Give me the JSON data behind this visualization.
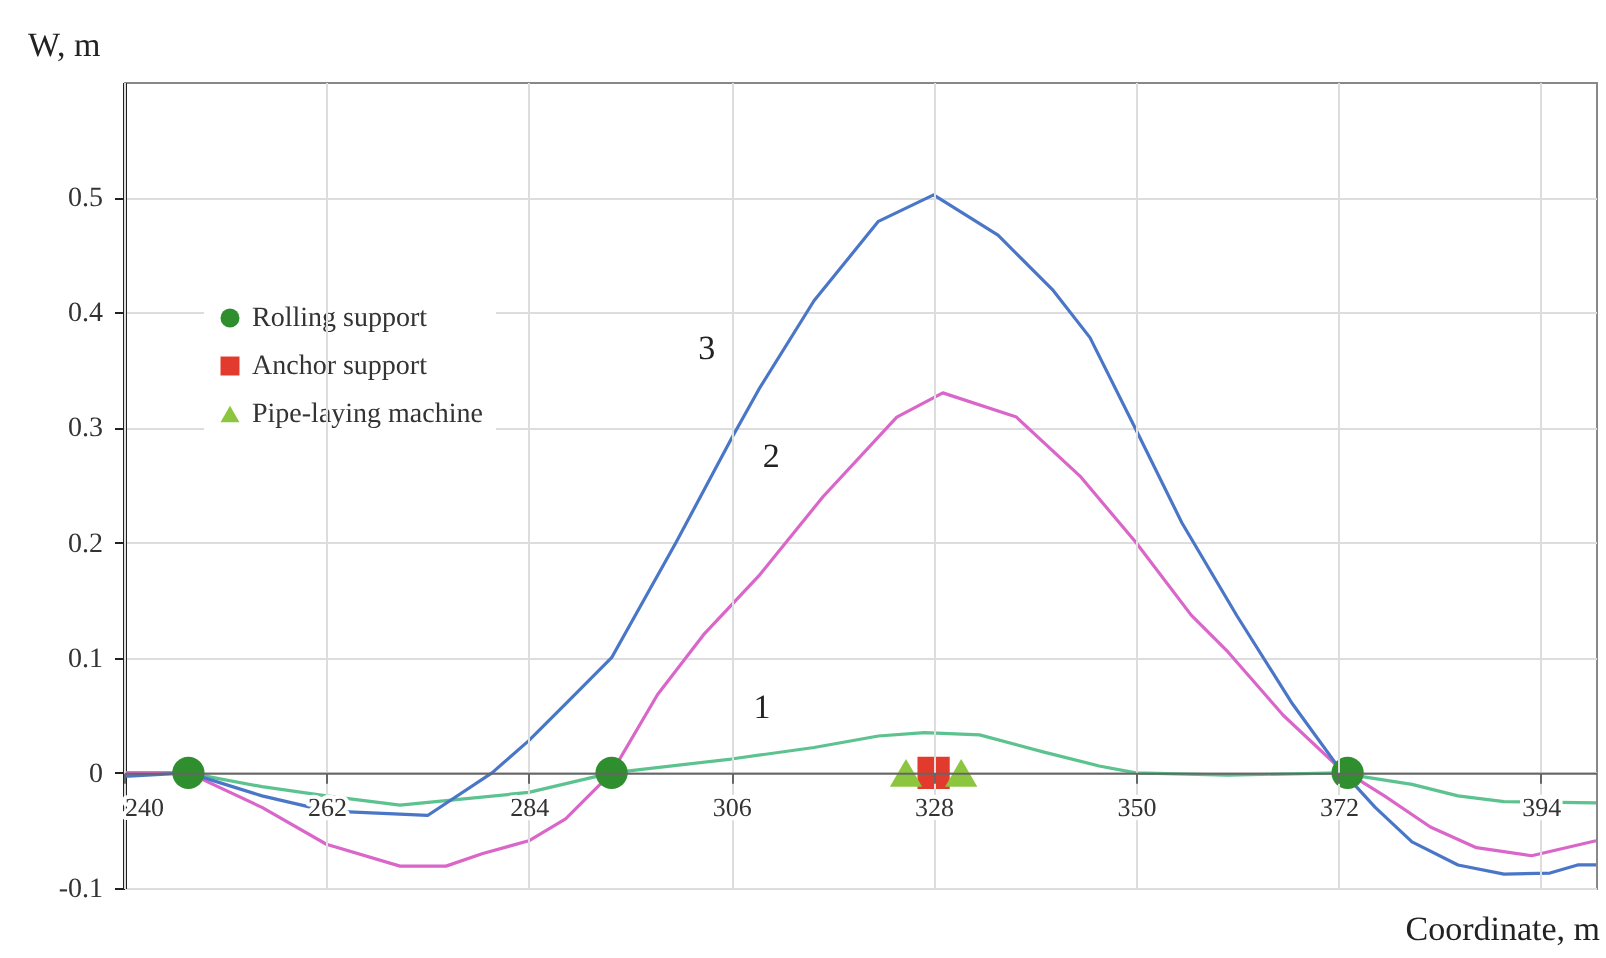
{
  "chart_data": {
    "type": "line",
    "xlabel": "Coordinate, m",
    "ylabel": "W, m",
    "xlim": [
      240,
      400
    ],
    "ylim": [
      -0.1,
      0.6
    ],
    "xticks": [
      240,
      262,
      284,
      306,
      328,
      350,
      372,
      394
    ],
    "yticks": [
      -0.1,
      0,
      0.1,
      0.2,
      0.3,
      0.4,
      0.5
    ],
    "grid": true,
    "legend": "top left",
    "line_style": "solid",
    "series": [
      {
        "type": "line",
        "color": "#5cc28f",
        "x": [
          240,
          247,
          255,
          262,
          270,
          284,
          293,
          306,
          315,
          322,
          327,
          333,
          340,
          346,
          350,
          360,
          372,
          380,
          385,
          390,
          400
        ],
        "values": [
          0,
          0,
          -0.012,
          -0.02,
          -0.028,
          -0.017,
          0,
          0.012,
          0.022,
          0.032,
          0.035,
          0.033,
          0.018,
          0.006,
          0,
          -0.002,
          0,
          -0.01,
          -0.02,
          -0.025,
          -0.026
        ]
      },
      {
        "type": "line",
        "color": "#d966c8",
        "x": [
          240,
          247,
          255,
          262,
          270,
          275,
          279,
          284,
          288,
          293,
          298,
          303,
          309,
          316,
          324,
          329,
          337,
          344,
          350,
          356,
          360,
          366,
          372,
          377,
          382,
          387,
          393,
          400
        ],
        "values": [
          0,
          0,
          -0.03,
          -0.062,
          -0.081,
          -0.081,
          -0.07,
          -0.059,
          -0.04,
          0,
          0.068,
          0.12,
          0.171,
          0.24,
          0.309,
          0.33,
          0.309,
          0.257,
          0.2,
          0.137,
          0.105,
          0.05,
          0.005,
          -0.02,
          -0.047,
          -0.065,
          -0.072,
          -0.059
        ]
      },
      {
        "type": "line",
        "color": "#4a76c8",
        "x": [
          240,
          247,
          255,
          262,
          273,
          280,
          284,
          288,
          293,
          300,
          306,
          309,
          315,
          322,
          328,
          335,
          341,
          345,
          350,
          355,
          361,
          367,
          372,
          376,
          380,
          385,
          390,
          395,
          398,
          400
        ],
        "values": [
          -0.003,
          0,
          -0.02,
          -0.033,
          -0.037,
          0,
          0.028,
          0.06,
          0.1,
          0.2,
          0.29,
          0.333,
          0.41,
          0.479,
          0.502,
          0.467,
          0.419,
          0.378,
          0.298,
          0.217,
          0.136,
          0.06,
          0.005,
          -0.03,
          -0.06,
          -0.08,
          -0.088,
          -0.087,
          -0.08,
          -0.08
        ]
      },
      {
        "type": "scatter",
        "name": "Rolling support",
        "color": "#2f8f2f",
        "marker": "circle",
        "x": [
          247,
          293,
          373
        ],
        "values": [
          0,
          0,
          0
        ]
      },
      {
        "type": "scatter",
        "name": "Anchor support",
        "color": "#e23b2e",
        "marker": "square",
        "x": [
          328
        ],
        "values": [
          0
        ]
      },
      {
        "type": "scatter",
        "name": "Pipe-laying machine",
        "color": "#8cc63f",
        "marker": "triangle",
        "x": [
          325,
          331
        ],
        "values": [
          0,
          0
        ]
      }
    ],
    "annotations": [
      {
        "text": "3",
        "x": 309,
        "y": 0.333
      },
      {
        "text": "2",
        "x": 316,
        "y": 0.24
      },
      {
        "text": "1",
        "x": 315,
        "y": 0.022
      }
    ]
  }
}
